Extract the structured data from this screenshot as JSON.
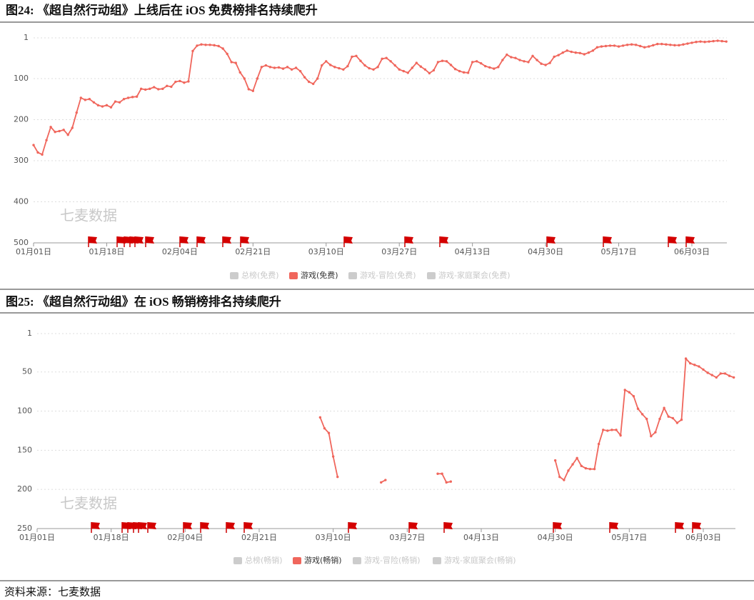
{
  "chart_data": [
    {
      "type": "line",
      "title": "图24:  《超自然行动组》上线后在 iOS 免费榜排名持续爬升",
      "watermark": "七麦数据",
      "y_inverted": true,
      "ylim": [
        1,
        500
      ],
      "yticks": [
        1,
        100,
        200,
        300,
        400,
        500
      ],
      "grid": true,
      "categories": [
        "01月01日",
        null,
        null,
        null,
        null,
        null,
        null,
        null,
        null,
        null,
        null,
        null,
        null,
        null,
        null,
        null,
        null,
        "01月18日",
        null,
        null,
        null,
        null,
        null,
        null,
        null,
        null,
        null,
        null,
        null,
        null,
        null,
        null,
        null,
        null,
        "02月04日",
        null,
        null,
        null,
        null,
        null,
        null,
        null,
        null,
        null,
        null,
        null,
        null,
        null,
        null,
        null,
        null,
        "02月21日",
        null,
        null,
        null,
        null,
        null,
        null,
        null,
        null,
        null,
        null,
        null,
        null,
        null,
        null,
        null,
        null,
        "03月10日",
        null,
        null,
        null,
        null,
        null,
        null,
        null,
        null,
        null,
        null,
        null,
        null,
        null,
        null,
        null,
        null,
        "03月27日",
        null,
        null,
        null,
        null,
        null,
        null,
        null,
        null,
        null,
        null,
        null,
        null,
        null,
        null,
        null,
        null,
        "04月13日",
        null,
        null,
        null,
        null,
        null,
        null,
        null,
        null,
        null,
        null,
        null,
        null,
        null,
        null,
        null,
        null,
        "04月30日",
        null,
        null,
        null,
        null,
        null,
        null,
        null,
        null,
        null,
        null,
        null,
        null,
        null,
        null,
        null,
        null,
        "05月17日",
        null,
        null,
        null,
        null,
        null,
        null,
        null,
        null,
        null,
        null,
        null,
        null,
        null,
        null,
        null,
        null,
        "06月03日",
        null,
        null,
        null,
        null,
        null,
        null,
        null,
        null
      ],
      "series": [
        {
          "name": "游戏(免费)",
          "color": "#f0665c",
          "values": [
            262,
            280,
            285,
            250,
            218,
            230,
            228,
            225,
            237,
            220,
            183,
            147,
            152,
            150,
            158,
            165,
            168,
            165,
            170,
            156,
            158,
            150,
            147,
            145,
            144,
            125,
            127,
            125,
            121,
            126,
            125,
            118,
            120,
            108,
            106,
            110,
            107,
            33,
            20,
            17,
            18,
            18,
            19,
            21,
            27,
            40,
            60,
            62,
            85,
            100,
            126,
            130,
            100,
            72,
            68,
            72,
            74,
            73,
            76,
            72,
            78,
            74,
            82,
            97,
            108,
            113,
            100,
            68,
            58,
            67,
            72,
            75,
            78,
            70,
            47,
            45,
            57,
            68,
            75,
            78,
            72,
            52,
            50,
            58,
            68,
            78,
            82,
            86,
            74,
            62,
            71,
            78,
            87,
            80,
            60,
            57,
            58,
            67,
            77,
            82,
            85,
            86,
            60,
            58,
            63,
            70,
            73,
            76,
            72,
            55,
            42,
            48,
            50,
            55,
            58,
            60,
            45,
            55,
            64,
            67,
            62,
            47,
            43,
            37,
            32,
            35,
            37,
            38,
            41,
            37,
            32,
            24,
            22,
            21,
            20,
            20,
            22,
            20,
            18,
            17,
            18,
            21,
            24,
            22,
            19,
            16,
            16,
            17,
            18,
            19,
            19,
            17,
            15,
            13,
            11,
            10,
            11,
            10,
            9,
            8,
            9,
            10
          ]
        }
      ],
      "legend": [
        {
          "name": "总榜(免费)",
          "color": "#cccccc"
        },
        {
          "name": "游戏(免费)",
          "color": "#f0665c"
        },
        {
          "name": "游戏-冒险(免费)",
          "color": "#cccccc"
        },
        {
          "name": "游戏-家庭聚会(免费)",
          "color": "#cccccc"
        }
      ]
    },
    {
      "type": "line",
      "title": "图25:  《超自然行动组》在 iOS 畅销榜排名持续爬升",
      "watermark": "七麦数据",
      "y_inverted": true,
      "ylim": [
        1,
        250
      ],
      "yticks": [
        1,
        50,
        100,
        150,
        200,
        250
      ],
      "grid": true,
      "categories": [
        "01月01日",
        null,
        null,
        null,
        null,
        null,
        null,
        null,
        null,
        null,
        null,
        null,
        null,
        null,
        null,
        null,
        null,
        "01月18日",
        null,
        null,
        null,
        null,
        null,
        null,
        null,
        null,
        null,
        null,
        null,
        null,
        null,
        null,
        null,
        null,
        "02月04日",
        null,
        null,
        null,
        null,
        null,
        null,
        null,
        null,
        null,
        null,
        null,
        null,
        null,
        null,
        null,
        null,
        "02月21日",
        null,
        null,
        null,
        null,
        null,
        null,
        null,
        null,
        null,
        null,
        null,
        null,
        null,
        null,
        null,
        null,
        "03月10日",
        null,
        null,
        null,
        null,
        null,
        null,
        null,
        null,
        null,
        null,
        null,
        null,
        null,
        null,
        null,
        null,
        "03月27日",
        null,
        null,
        null,
        null,
        null,
        null,
        null,
        null,
        null,
        null,
        null,
        null,
        null,
        null,
        null,
        null,
        "04月13日",
        null,
        null,
        null,
        null,
        null,
        null,
        null,
        null,
        null,
        null,
        null,
        null,
        null,
        null,
        null,
        null,
        "04月30日",
        null,
        null,
        null,
        null,
        null,
        null,
        null,
        null,
        null,
        null,
        null,
        null,
        null,
        null,
        null,
        null,
        "05月17日",
        null,
        null,
        null,
        null,
        null,
        null,
        null,
        null,
        null,
        null,
        null,
        null,
        null,
        null,
        null,
        null,
        "06月03日",
        null,
        null,
        null,
        null,
        null,
        null,
        null,
        null
      ],
      "series": [
        {
          "name": "游戏(畅销)",
          "color": "#f0665c",
          "values": [
            null,
            null,
            null,
            null,
            null,
            null,
            null,
            null,
            null,
            null,
            null,
            null,
            null,
            null,
            null,
            null,
            null,
            null,
            null,
            null,
            null,
            null,
            null,
            null,
            null,
            null,
            null,
            null,
            null,
            null,
            null,
            null,
            null,
            null,
            null,
            null,
            null,
            null,
            null,
            null,
            null,
            null,
            null,
            null,
            null,
            null,
            null,
            null,
            null,
            null,
            null,
            null,
            null,
            null,
            null,
            null,
            null,
            null,
            null,
            null,
            null,
            null,
            null,
            null,
            null,
            108,
            122,
            128,
            158,
            184,
            null,
            null,
            null,
            null,
            null,
            null,
            null,
            null,
            null,
            191,
            188,
            null,
            null,
            null,
            null,
            null,
            null,
            null,
            null,
            null,
            null,
            null,
            180,
            180,
            191,
            190,
            null,
            null,
            null,
            null,
            null,
            null,
            null,
            null,
            null,
            null,
            null,
            null,
            null,
            null,
            null,
            null,
            null,
            null,
            null,
            null,
            null,
            null,
            null,
            163,
            184,
            188,
            176,
            168,
            160,
            170,
            173,
            174,
            174,
            142,
            124,
            125,
            124,
            124,
            131,
            73,
            76,
            81,
            97,
            104,
            110,
            132,
            127,
            110,
            96,
            107,
            109,
            115,
            111,
            33,
            39,
            41,
            43,
            47,
            51,
            54,
            57,
            52,
            52,
            55,
            57,
            null
          ]
        }
      ],
      "legend": [
        {
          "name": "总榜(畅销)",
          "color": "#cccccc"
        },
        {
          "name": "游戏(畅销)",
          "color": "#f0665c"
        },
        {
          "name": "游戏-冒险(畅销)",
          "color": "#cccccc"
        },
        {
          "name": "游戏-家庭聚会(畅销)",
          "color": "#cccccc"
        }
      ]
    }
  ],
  "source": "资料来源：七麦数据"
}
